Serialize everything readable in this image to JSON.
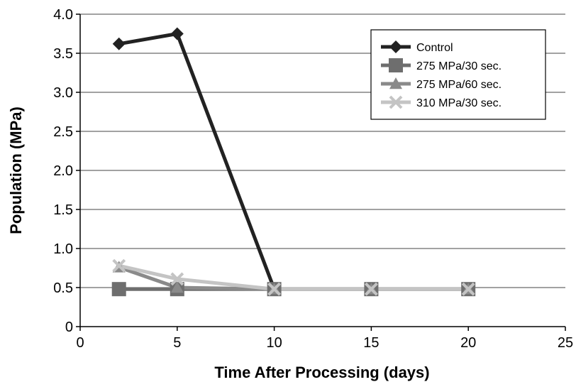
{
  "chart_data": {
    "type": "line",
    "xlabel": "Time After Processing (days)",
    "ylabel": "Population (MPa)",
    "xlim": [
      0,
      25
    ],
    "ylim": [
      0,
      4.0
    ],
    "x_ticks": [
      "0",
      "5",
      "10",
      "15",
      "20",
      "25"
    ],
    "y_ticks": [
      "0",
      "0.5",
      "1.0",
      "1.5",
      "2.0",
      "2.5",
      "3.0",
      "3.5",
      "4.0"
    ],
    "grid": "horizontal",
    "legend_position": "top-right",
    "series": [
      {
        "name": "Control",
        "color": "#222222",
        "marker": "diamond",
        "x": [
          2,
          5,
          10
        ],
        "y": [
          3.62,
          3.75,
          0.48
        ]
      },
      {
        "name": "275 MPa/30 sec.",
        "color": "#6e6e6e",
        "marker": "square",
        "x": [
          2,
          5,
          10,
          15,
          20
        ],
        "y": [
          0.48,
          0.48,
          0.48,
          0.48,
          0.48
        ]
      },
      {
        "name": "275 MPa/60 sec.",
        "color": "#8a8a8a",
        "marker": "triangle",
        "x": [
          2,
          5,
          10,
          15,
          20
        ],
        "y": [
          0.76,
          0.5,
          0.48,
          0.48,
          0.48
        ]
      },
      {
        "name": "310 MPa/30 sec.",
        "color": "#c4c4c4",
        "marker": "x",
        "x": [
          2,
          5,
          10,
          15,
          20
        ],
        "y": [
          0.78,
          0.61,
          0.48,
          0.48,
          0.48
        ]
      }
    ]
  }
}
